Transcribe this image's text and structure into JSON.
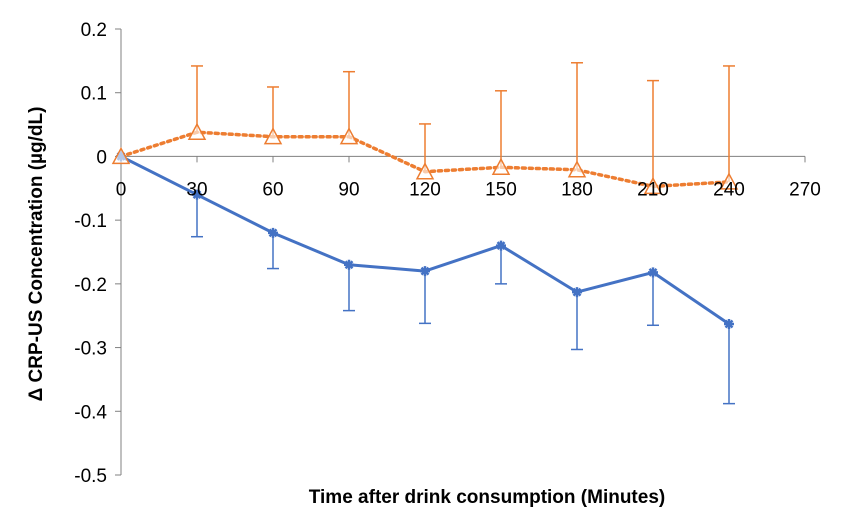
{
  "chart_data": {
    "type": "line",
    "title": "",
    "xlabel": "Time after drink consumption (Minutes)",
    "ylabel": "Δ CRP-US Concentration (µg/dL)",
    "xlim": [
      0,
      270
    ],
    "ylim": [
      -0.5,
      0.2
    ],
    "x_ticks": [
      0,
      30,
      60,
      90,
      120,
      150,
      180,
      210,
      240,
      270
    ],
    "y_ticks": [
      0.2,
      0.1,
      0,
      -0.1,
      -0.2,
      -0.3,
      -0.4,
      -0.5
    ],
    "grid": false,
    "legend": "none",
    "series": [
      {
        "color": "#4472C4",
        "line_style": "solid",
        "marker": "asterisk",
        "error_direction": "down",
        "x": [
          0,
          30,
          60,
          90,
          120,
          150,
          180,
          210,
          240
        ],
        "y": [
          0,
          -0.06,
          -0.12,
          -0.17,
          -0.18,
          -0.14,
          -0.213,
          -0.182,
          -0.263
        ],
        "error": [
          0,
          0.066,
          0.056,
          0.072,
          0.082,
          0.06,
          0.09,
          0.083,
          0.125
        ]
      },
      {
        "color": "#ED7D31",
        "line_style": "dotted",
        "marker": "open-triangle",
        "error_direction": "up",
        "x": [
          0,
          30,
          60,
          90,
          120,
          150,
          180,
          210,
          240
        ],
        "y": [
          0,
          0.038,
          0.031,
          0.031,
          -0.024,
          -0.017,
          -0.021,
          -0.047,
          -0.04
        ],
        "error": [
          0,
          0.104,
          0.078,
          0.102,
          0.075,
          0.12,
          0.168,
          0.166,
          0.182
        ]
      }
    ]
  }
}
